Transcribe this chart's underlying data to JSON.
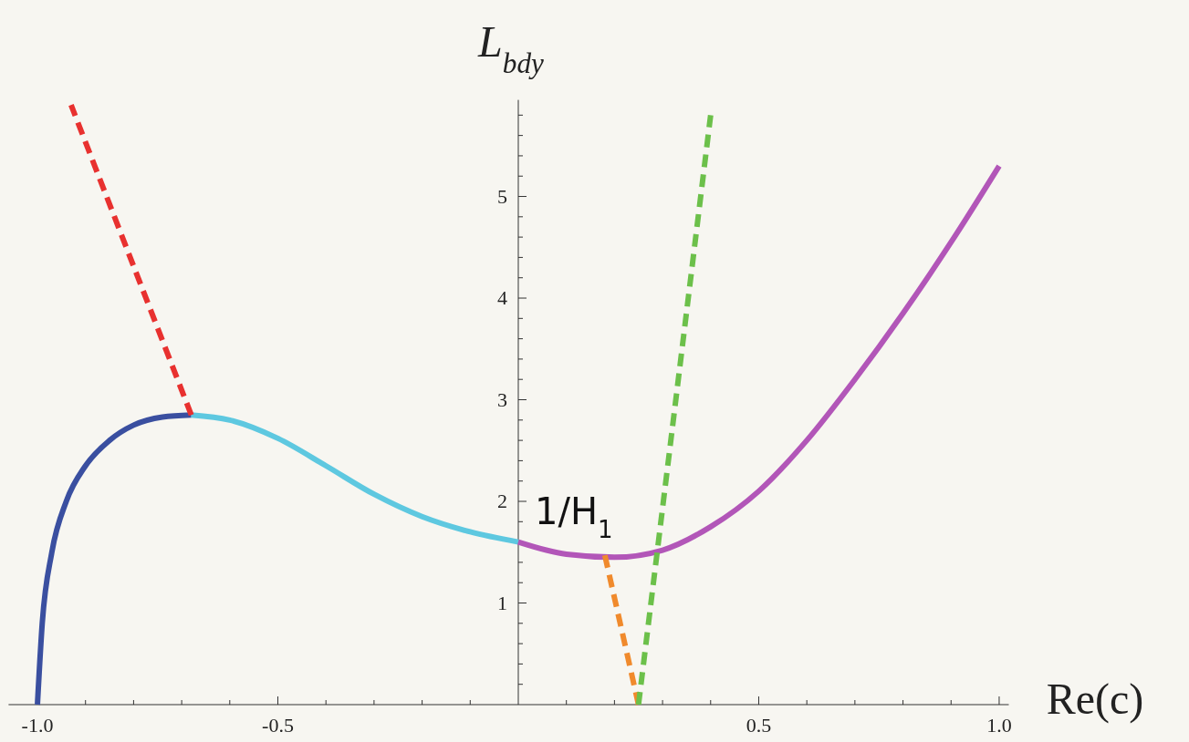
{
  "chart_data": {
    "type": "line",
    "xlabel": "Re(c)",
    "ylabel": "L$_{bdy}$",
    "xlim": [
      -1.06,
      1.02
    ],
    "ylim": [
      0,
      5.95
    ],
    "xticks": [
      {
        "value": -1,
        "label": "-1.0"
      },
      {
        "value": -0.9,
        "label": null
      },
      {
        "value": -0.8,
        "label": null
      },
      {
        "value": -0.7,
        "label": null
      },
      {
        "value": -0.6,
        "label": null
      },
      {
        "value": -0.5,
        "label": "-0.5"
      },
      {
        "value": -0.4,
        "label": null
      },
      {
        "value": -0.3,
        "label": null
      },
      {
        "value": -0.2,
        "label": null
      },
      {
        "value": -0.1,
        "label": null
      },
      {
        "value": 0.1,
        "label": null
      },
      {
        "value": 0.2,
        "label": null
      },
      {
        "value": 0.3,
        "label": null
      },
      {
        "value": 0.4,
        "label": null
      },
      {
        "value": 0.5,
        "label": "0.5"
      },
      {
        "value": 0.6,
        "label": null
      },
      {
        "value": 0.7,
        "label": null
      },
      {
        "value": 0.8,
        "label": null
      },
      {
        "value": 0.9,
        "label": null
      },
      {
        "value": 1,
        "label": "1.0"
      }
    ],
    "yticks": [
      {
        "value": 0.2,
        "label": null
      },
      {
        "value": 0.4,
        "label": null
      },
      {
        "value": 0.6,
        "label": null
      },
      {
        "value": 0.8,
        "label": null
      },
      1,
      {
        "value": 1.2,
        "label": null
      },
      {
        "value": 1.4,
        "label": null
      },
      {
        "value": 1.6,
        "label": null
      },
      {
        "value": 1.8,
        "label": null
      },
      2,
      {
        "value": 2.2,
        "label": null
      },
      {
        "value": 2.4,
        "label": null
      },
      {
        "value": 2.6,
        "label": null
      },
      {
        "value": 2.8,
        "label": null
      },
      3,
      {
        "value": 3.2,
        "label": null
      },
      {
        "value": 3.4,
        "label": null
      },
      {
        "value": 3.6,
        "label": null
      },
      {
        "value": 3.8,
        "label": null
      },
      4,
      {
        "value": 4.2,
        "label": null
      },
      {
        "value": 4.4,
        "label": null
      },
      {
        "value": 4.6,
        "label": null
      },
      {
        "value": 4.8,
        "label": null
      },
      5,
      {
        "value": 5.2,
        "label": null
      },
      {
        "value": 5.4,
        "label": null
      },
      {
        "value": 5.6,
        "label": null
      },
      {
        "value": 5.8,
        "label": null
      }
    ],
    "grid": false,
    "marker": "none",
    "annotations": [
      {
        "text": "1/H$_{1}$",
        "x": 0,
        "y": 1.6
      }
    ],
    "series": [
      {
        "color": "#3a4fa0",
        "line_style": "solid",
        "x": [
          -1,
          -0.99,
          -0.97,
          -0.94,
          -0.9,
          -0.85,
          -0.8,
          -0.74,
          -0.68
        ],
        "values": [
          0,
          0.8,
          1.5,
          2.0,
          2.35,
          2.6,
          2.75,
          2.83,
          2.85
        ]
      },
      {
        "color": "#5ec8e0",
        "line_style": "solid",
        "x": [
          -0.68,
          -0.6,
          -0.5,
          -0.4,
          -0.3,
          -0.2,
          -0.1,
          0
        ],
        "values": [
          2.85,
          2.8,
          2.62,
          2.35,
          2.07,
          1.85,
          1.7,
          1.6
        ]
      },
      {
        "color": "#b256b8",
        "line_style": "solid",
        "x": [
          0,
          0.1,
          0.2,
          0.3,
          0.4,
          0.5,
          0.6,
          0.7,
          0.8,
          0.9,
          1.0
        ],
        "values": [
          1.6,
          1.48,
          1.45,
          1.52,
          1.75,
          2.1,
          2.6,
          3.2,
          3.85,
          4.55,
          5.3
        ]
      },
      {
        "color": "#e8312f",
        "line_style": "dashed",
        "x": [
          -0.68,
          -0.93
        ],
        "values": [
          2.85,
          5.9
        ]
      },
      {
        "color": "#f08a2c",
        "line_style": "dashed",
        "x": [
          0.18,
          0.25
        ],
        "values": [
          1.47,
          0
        ]
      },
      {
        "color": "#6cc04a",
        "line_style": "dashed",
        "x": [
          0.25,
          0.4
        ],
        "values": [
          0,
          5.8
        ]
      }
    ]
  }
}
